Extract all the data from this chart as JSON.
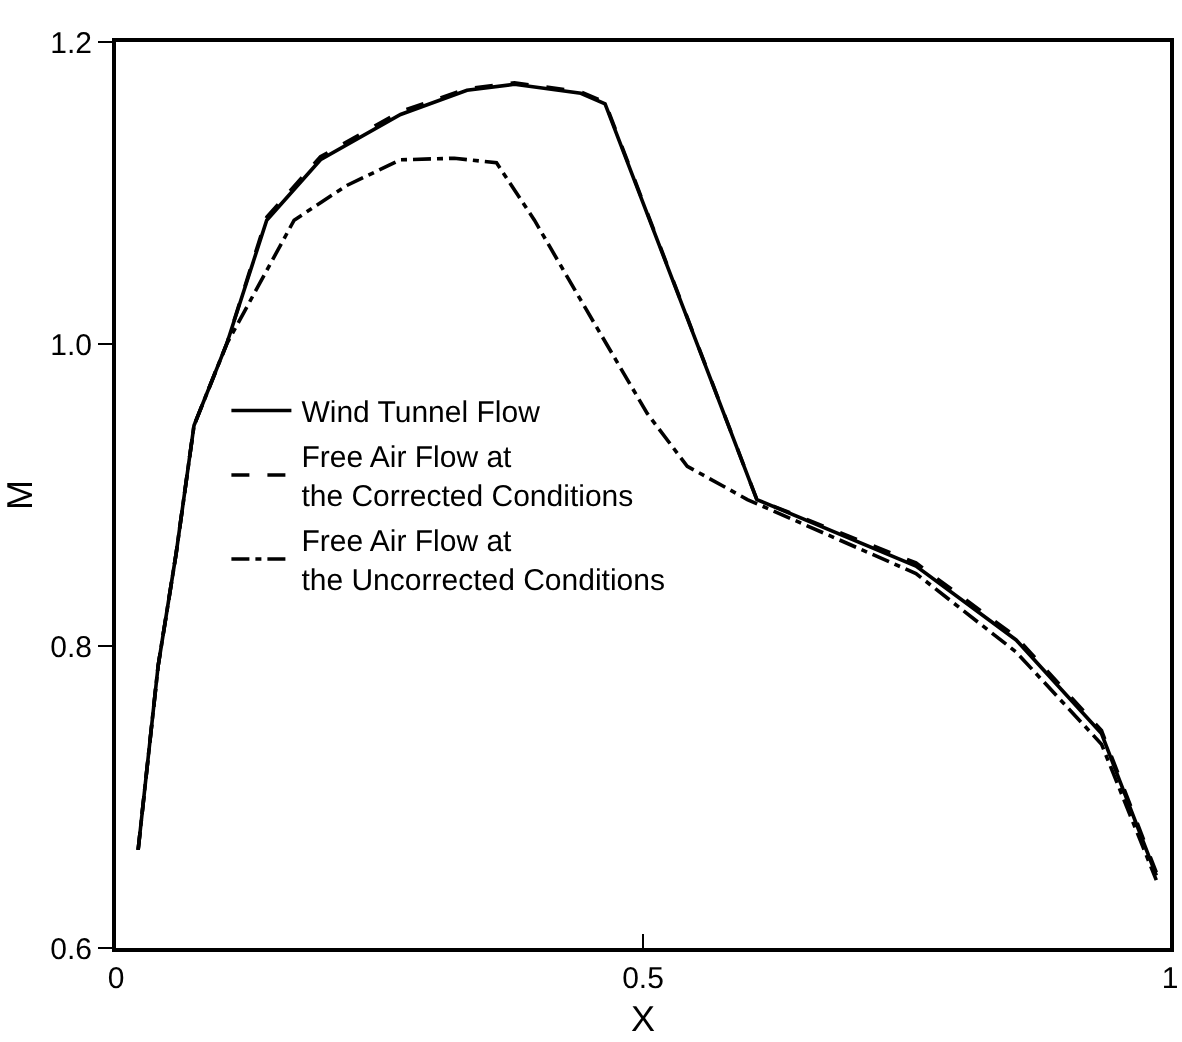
{
  "chart_data": {
    "type": "line",
    "xlabel": "X",
    "ylabel": "M",
    "xlim": [
      0,
      1
    ],
    "ylim": [
      0.6,
      1.2
    ],
    "xticks": [
      0,
      0.5,
      1
    ],
    "yticks": [
      0.6,
      0.8,
      {
        "value": 1,
        "label": "1.0"
      },
      1.2
    ],
    "grid": false,
    "legend": "center left",
    "marker": "none",
    "series": [
      {
        "name": "Wind Tunnel Flow",
        "color": "#000000",
        "line_style": "solid",
        "x": [
          0.021,
          0.04,
          0.057,
          0.074,
          0.105,
          0.143,
          0.194,
          0.27,
          0.333,
          0.378,
          0.441,
          0.464,
          0.608,
          0.759,
          0.854,
          0.935,
          0.987
        ],
        "values": [
          0.665,
          0.787,
          0.861,
          0.946,
          1.0,
          1.082,
          1.122,
          1.152,
          1.168,
          1.172,
          1.166,
          1.159,
          0.897,
          0.853,
          0.804,
          0.742,
          0.648
        ]
      },
      {
        "name": "Free Air Flow at\nthe Corrected Conditions",
        "color": "#000000",
        "line_style": "dashed",
        "x": [
          0.021,
          0.04,
          0.057,
          0.074,
          0.105,
          0.143,
          0.194,
          0.27,
          0.333,
          0.378,
          0.441,
          0.464,
          0.608,
          0.759,
          0.854,
          0.935,
          0.987
        ],
        "values": [
          0.665,
          0.787,
          0.861,
          0.946,
          1.0,
          1.084,
          1.124,
          1.154,
          1.169,
          1.173,
          1.167,
          1.16,
          0.897,
          0.855,
          0.806,
          0.744,
          0.65
        ]
      },
      {
        "name": "Free Air Flow at\nthe Uncorrected Conditions",
        "color": "#000000",
        "line_style": "dashdot",
        "x": [
          0.021,
          0.04,
          0.057,
          0.074,
          0.105,
          0.169,
          0.219,
          0.27,
          0.321,
          0.361,
          0.397,
          0.441,
          0.504,
          0.542,
          0.599,
          0.759,
          0.854,
          0.935,
          0.987
        ],
        "values": [
          0.665,
          0.787,
          0.861,
          0.946,
          1.0,
          1.082,
          1.105,
          1.122,
          1.123,
          1.12,
          1.082,
          1.029,
          0.954,
          0.919,
          0.897,
          0.848,
          0.796,
          0.735,
          0.645
        ]
      }
    ]
  }
}
